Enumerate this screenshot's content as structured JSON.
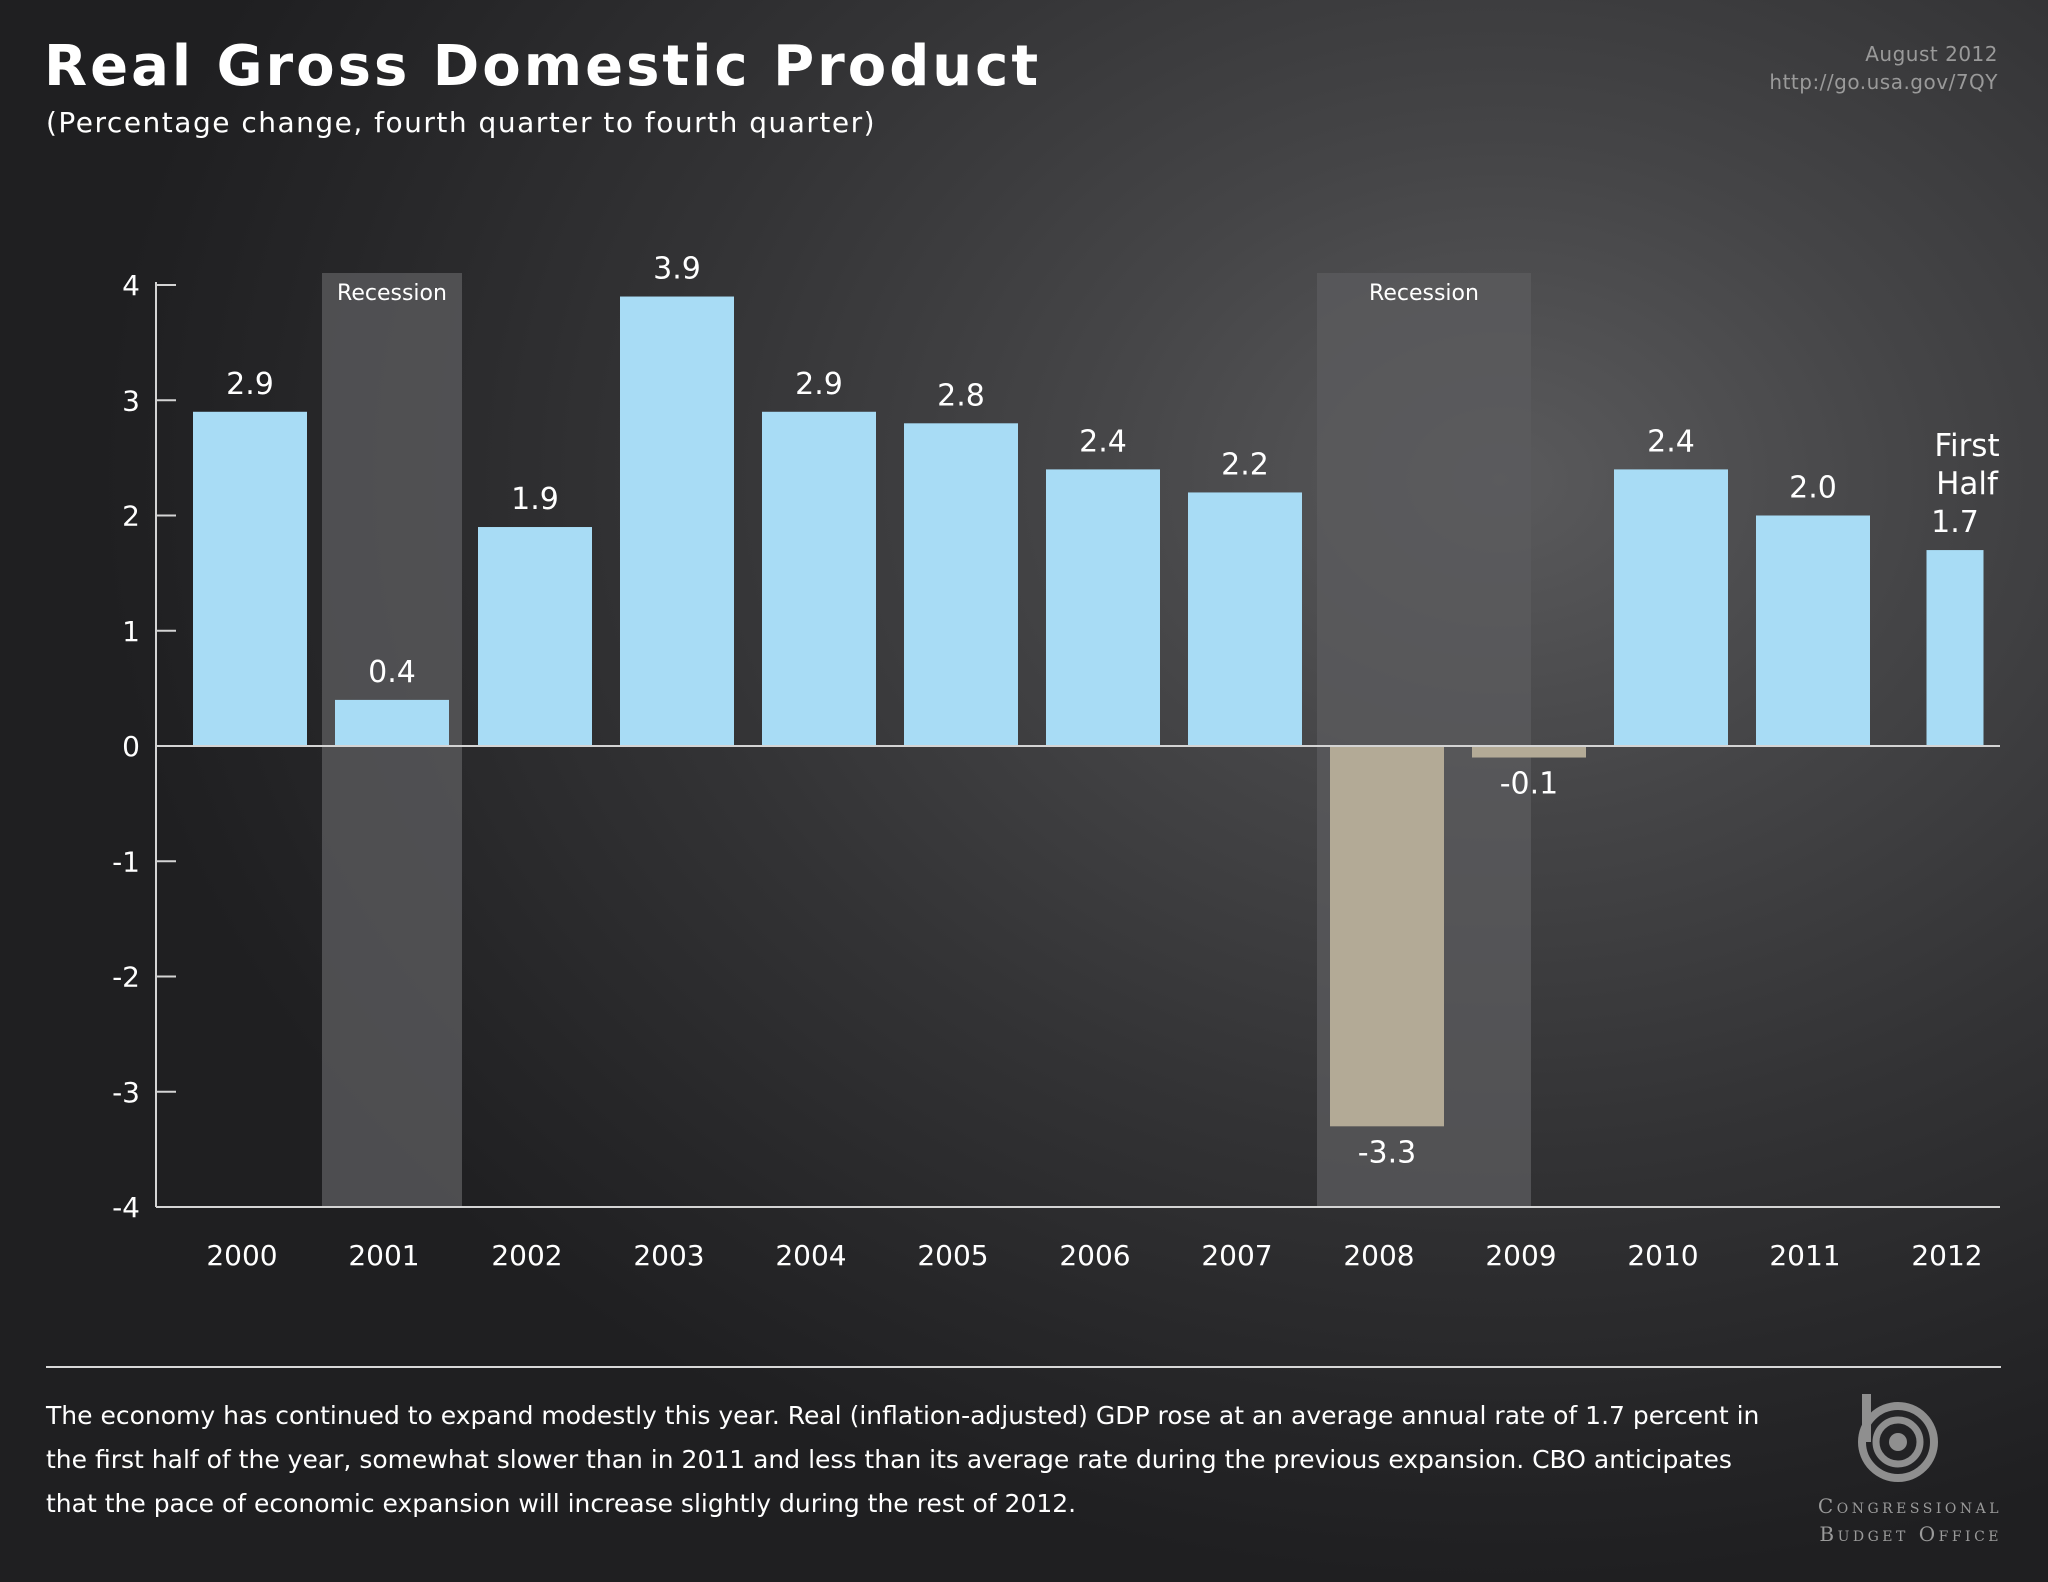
{
  "header": {
    "title": "Real Gross Domestic Product",
    "subtitle": "(Percentage change, fourth quarter to fourth quarter)",
    "date": "August 2012",
    "url": "http://go.usa.gov/7QY"
  },
  "chart_data": {
    "type": "bar",
    "categories": [
      "2000",
      "2001",
      "2002",
      "2003",
      "2004",
      "2005",
      "2006",
      "2007",
      "2008",
      "2009",
      "2010",
      "2011",
      "2012"
    ],
    "values": [
      2.9,
      0.4,
      1.9,
      3.9,
      2.9,
      2.8,
      2.4,
      2.2,
      -3.3,
      -0.1,
      2.4,
      2.0,
      1.7
    ],
    "value_labels": [
      "2.9",
      "0.4",
      "1.9",
      "3.9",
      "2.9",
      "2.8",
      "2.4",
      "2.2",
      "-3.3",
      "-0.1",
      "2.4",
      "2.0",
      "1.7"
    ],
    "special_label": {
      "category": "2012",
      "lines": [
        "First",
        "Half"
      ]
    },
    "yticks": [
      "4",
      "3",
      "2",
      "1",
      "0",
      "-1",
      "-2",
      "-3",
      "-4"
    ],
    "ylim": [
      -4,
      4
    ],
    "recessions": [
      {
        "label": "Recession",
        "from": "2001",
        "to": "2001"
      },
      {
        "label": "Recession",
        "from": "2008",
        "to": "2009"
      }
    ],
    "colors": {
      "positive": "#a8dcf5",
      "negative": "#b3aa96",
      "recession": "#5b5b5d",
      "axis": "#d4d4d4",
      "text": "#ffffff"
    },
    "grid": false
  },
  "footer": {
    "description": "The economy has continued to expand modestly this year. Real (inflation-adjusted) GDP rose at an average annual rate of 1.7 percent in the first half of the year, somewhat slower than in 2011 and less than its average rate during the previous expansion. CBO anticipates that the pace of economic expansion will increase slightly during the rest of 2012.",
    "org_line1": "Congressional",
    "org_line2": "Budget Office",
    "logo_icon": "cbo-logo-icon"
  }
}
